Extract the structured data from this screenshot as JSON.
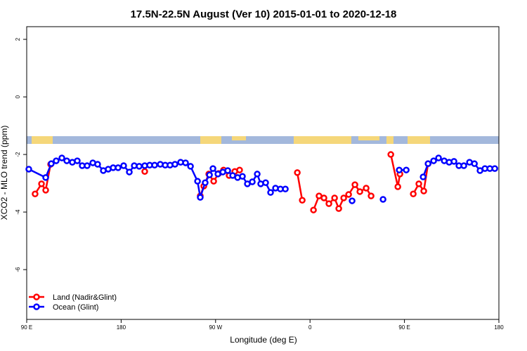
{
  "chart_data": {
    "type": "line",
    "title": "17.5N-22.5N August (Ver 10)   2015-01-01 to 2020-12-18",
    "x_label": "Longitude (deg E)",
    "y_label": "XCO2 - MLO trend (ppm)",
    "xlim": [
      90,
      540
    ],
    "ylim": [
      -7.73,
      2.44
    ],
    "xticks": [
      {
        "value": 90,
        "label": "90 E"
      },
      180,
      {
        "value": 270,
        "label": "90 W"
      },
      {
        "value": 360,
        "label": "0"
      },
      {
        "value": 450,
        "label": "90 E"
      },
      {
        "value": 540,
        "label": "180"
      }
    ],
    "yticks": [
      -6,
      -4,
      -2,
      0,
      2
    ],
    "legend": "bottom-left",
    "series": [
      {
        "name": "Land (Nadir&Glint)",
        "color": "#ff0000",
        "x": [
          98.0,
          104.1,
          108.1,
          112.8,
          150,
          202.5,
          230,
          255.4,
          258.8,
          263.5,
          268.2,
          272.9,
          277.6,
          282.9,
          288.3,
          292.9,
          320,
          347.9,
          352.6,
          358,
          363.3,
          368.6,
          373.3,
          378.0,
          383.4,
          387.4,
          392.1,
          396.8,
          402.8,
          407.5,
          413.5,
          418.2,
          430,
          437.0,
          443.7,
          445.7,
          452,
          458.4,
          463.7,
          468.4,
          472.5
        ],
        "values": [
          -3.37,
          -3.02,
          -3.24,
          -2.34,
          null,
          -2.59,
          null,
          -3.44,
          -3.1,
          -2.68,
          -2.93,
          -2.66,
          -2.54,
          -2.73,
          -2.59,
          -2.54,
          null,
          -2.63,
          -3.59,
          null,
          -3.93,
          -3.44,
          -3.51,
          -3.71,
          -3.51,
          -3.88,
          -3.51,
          -3.39,
          -3.05,
          -3.29,
          -3.17,
          -3.44,
          null,
          -2.0,
          -3.12,
          -2.68,
          null,
          -3.37,
          -3.02,
          -3.27,
          -2.32
        ]
      },
      {
        "name": "Ocean (Glint)",
        "color": "#0000ff",
        "x": [
          92.0,
          108.1,
          113.4,
          118.1,
          123.5,
          128.2,
          133.5,
          138.2,
          142.9,
          147.6,
          153.0,
          157.6,
          163.0,
          167.7,
          172.4,
          177.1,
          182.4,
          187.8,
          192.5,
          197.2,
          202.5,
          207.2,
          211.9,
          217.3,
          222.0,
          226.6,
          231.3,
          236.7,
          241.4,
          246.1,
          252.8,
          255.4,
          260.1,
          264.2,
          267.5,
          272.2,
          276.9,
          281.6,
          286.3,
          291.0,
          295.6,
          300.3,
          305.0,
          309.7,
          313.0,
          317.7,
          322.4,
          327.1,
          331.8,
          336.5,
          370,
          400.1,
          415,
          429.6,
          440,
          445.0,
          451.7,
          460,
          467.8,
          472.5,
          477.8,
          482.5,
          487.9,
          492.6,
          497.2,
          501.9,
          506.6,
          512.0,
          516.7,
          522.0,
          526.7,
          531.4,
          536.1
        ],
        "values": [
          -2.51,
          -2.8,
          -2.32,
          -2.22,
          -2.12,
          -2.22,
          -2.27,
          -2.22,
          -2.39,
          -2.39,
          -2.29,
          -2.34,
          -2.56,
          -2.51,
          -2.46,
          -2.46,
          -2.39,
          -2.61,
          -2.39,
          -2.41,
          -2.39,
          -2.37,
          -2.37,
          -2.34,
          -2.37,
          -2.37,
          -2.34,
          -2.27,
          -2.29,
          -2.41,
          -2.93,
          -3.49,
          -2.98,
          -2.71,
          -2.49,
          -2.68,
          -2.61,
          -2.56,
          -2.73,
          -2.8,
          -2.76,
          -3.02,
          -2.95,
          -2.68,
          -3.02,
          -2.98,
          -3.32,
          -3.17,
          -3.2,
          -3.2,
          null,
          -3.61,
          null,
          -3.56,
          null,
          -2.54,
          -2.54,
          null,
          -2.78,
          -2.32,
          -2.22,
          -2.12,
          -2.22,
          -2.27,
          -2.24,
          -2.39,
          -2.39,
          -2.27,
          -2.32,
          -2.56,
          -2.49,
          -2.49,
          -2.49
        ]
      }
    ]
  }
}
